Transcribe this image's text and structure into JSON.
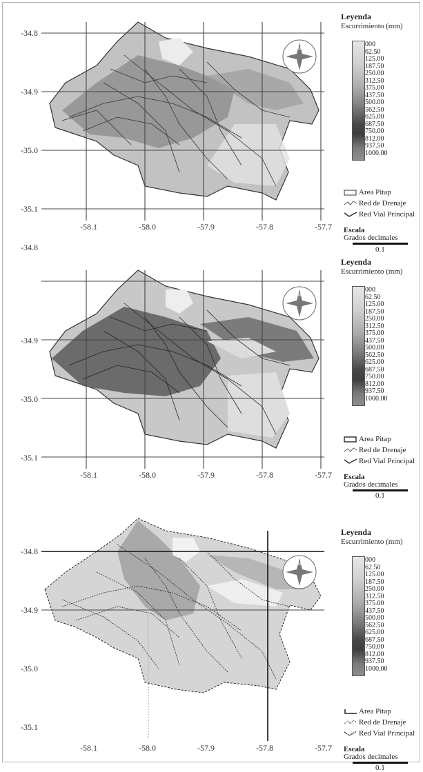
{
  "panels": [
    {
      "y_ticks": [
        "-34.8",
        "-34.9",
        "-35.0",
        "-35.1"
      ],
      "x_ticks": [
        "-58.1",
        "-58.0",
        "-57.9",
        "-57.8",
        "-57.7"
      ],
      "legend": {
        "title": "Leyenda",
        "subtitle": "Escurrimiento (mm)",
        "values": [
          "000",
          "62.50",
          "125.00",
          "187.50",
          "250.00",
          "312.50",
          "375.00",
          "437.50",
          "500.00",
          "562.50",
          "625.00",
          "687.50",
          "750.00",
          "812.00",
          "937.50",
          "1000.00"
        ],
        "items": [
          "Area Pitap",
          "Red de Drenaje",
          "Red Vial Principal"
        ],
        "scale_title": "Escala",
        "scale_unit": "Grados decimales",
        "scale_value": "0.1"
      }
    },
    {
      "y_ticks": [
        "-34.8",
        "-34.9",
        "-35.0",
        "-35.1"
      ],
      "x_ticks": [
        "-58.1",
        "-58.0",
        "-57.9",
        "-57.8",
        "-57.7"
      ],
      "legend": {
        "title": "Leyenda",
        "subtitle": "Escurrimiento (mm)",
        "values": [
          "000",
          "62.50",
          "125.00",
          "187.50",
          "250.00",
          "312.50",
          "375.00",
          "437.50",
          "500.00",
          "562.50",
          "625.00",
          "687.50",
          "750.00",
          "812.00",
          "937.50",
          "1000.00"
        ],
        "items": [
          "Area Pitap",
          "Red de Drenaje",
          "Red Vial Principal"
        ],
        "scale_title": "Escala",
        "scale_unit": "Grados decimales",
        "scale_value": "0.1"
      }
    },
    {
      "y_ticks": [
        "-34.8",
        "-34.9",
        "-35.0",
        "-35.1"
      ],
      "x_ticks": [
        "-58.1",
        "-58.0",
        "-57.9",
        "-57.8",
        "-57.7"
      ],
      "legend": {
        "title": "Leyenda",
        "subtitle": "Escurrimiento (mm)",
        "values": [
          "000",
          "62.50",
          "125.00",
          "187.50",
          "250.00",
          "312.50",
          "375.00",
          "437.50",
          "500.00",
          "562.50",
          "625.00",
          "687.50",
          "750.00",
          "812.00",
          "937.50",
          "1000.00"
        ],
        "items": [
          "Area Pitap",
          "Red de Drenaje",
          "Red Vial Principal"
        ],
        "scale_title": "Escala",
        "scale_unit": "Grados decimales",
        "scale_value": "0.1"
      }
    }
  ],
  "icons": {
    "north_arrow": "compass-rose-icon"
  },
  "colors": {
    "land": "#bdbdbd",
    "dark_runoff": "#555555",
    "light_runoff": "#e9e9e9",
    "grid": "#444444"
  }
}
